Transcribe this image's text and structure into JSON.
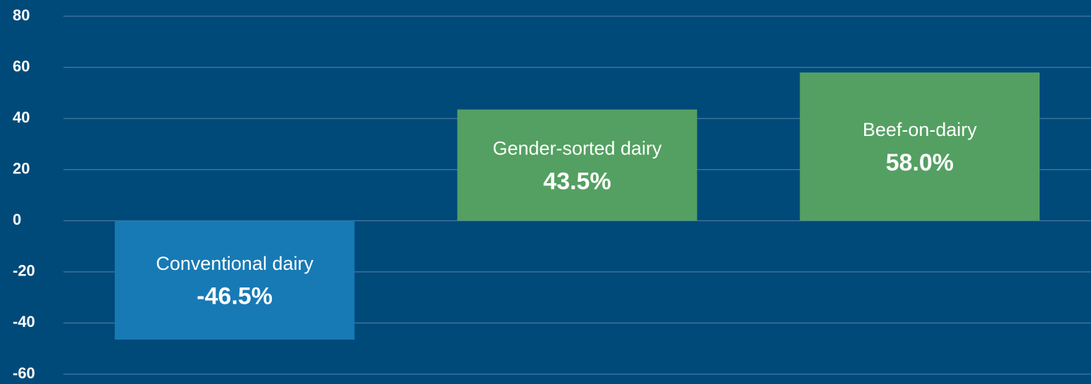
{
  "chart_data": {
    "type": "bar",
    "categories": [
      "Conventional dairy",
      "Gender-sorted dairy",
      "Beef-on-dairy"
    ],
    "values": [
      -46.5,
      43.5,
      58.0
    ],
    "value_labels": [
      "-46.5%",
      "43.5%",
      "58.0%"
    ],
    "colors": [
      "#177ab5",
      "#54a062",
      "#54a062"
    ],
    "ylim": [
      -60,
      80
    ],
    "yticks": [
      -60,
      -40,
      -20,
      0,
      20,
      40,
      60,
      80
    ],
    "grid": true
  }
}
